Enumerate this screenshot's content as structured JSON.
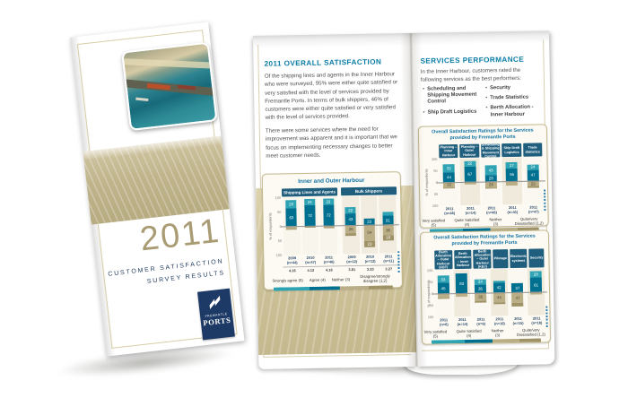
{
  "cover": {
    "year": "2011",
    "title_line1": "CUSTOMER SATISFACTION",
    "title_line2": "SURVEY RESULTS",
    "logo_name_top": "FREMANTLE",
    "logo_name_bottom": "PORTS"
  },
  "left_page": {
    "heading": "2011 OVERALL SATISFACTION",
    "p1": "Of the shipping lines and agents in the Inner Harbour who were surveyed, 95% were either quite satisfied or very satisfied with the level of services provided by Fremantle Ports. In terms of bulk shippers, 46% of customers were either quite satisfied or very satisfied with the level of services provided.",
    "p2": "There were some services where the need for improvement was apparent and it is important that we focus on implementing necessary changes to better meet customer needs."
  },
  "right_page": {
    "heading": "SERVICES PERFORMANCE",
    "intro": "In the Inner Harbour, customers rated the following services as the best performers:",
    "bullet_char": "•",
    "bullets": [
      "Scheduling and Shipping Movement Control",
      "Ship Draft Logistics",
      "Security",
      "Trade Statistics",
      "Berth Allocation - Inner Harbour"
    ]
  },
  "colors": {
    "very_satisfied": "#2da3b4",
    "quite_satisfied": "#007091",
    "neither": "#b9ae85",
    "dissatisfied": "#9e9266",
    "header_navy": "#205e7d",
    "heading_teal": "#0b7ca6",
    "panel_border": "#c6b98e",
    "cover_gold": "#a99b73",
    "logo_navy": "#1d3a66"
  },
  "chart_data": [
    {
      "type": "bar",
      "subtype": "diverging-stacked-bar",
      "title": "Inner and Outer Harbour",
      "ylabel": "% of respondents",
      "yticks": [
        "100",
        "50",
        "0",
        "50",
        "100"
      ],
      "legend": [
        "Strongly agree (5)",
        "Agree (4)",
        "Neither (3)",
        "Disagree/strongly disagree (1,2)"
      ],
      "groups": [
        {
          "label": "Shipping Lines and Agents",
          "span": 3
        },
        {
          "label": "Bulk Shippers",
          "span": 3
        }
      ],
      "columns": [
        {
          "x": "2009 (n=44)",
          "mean": "4.16",
          "very": 28,
          "quite": 63,
          "neither": 8,
          "dis": 1
        },
        {
          "x": "2010 (n=47)",
          "mean": "4.12",
          "very": 24,
          "quite": 72,
          "neither": 3,
          "dis": 1
        },
        {
          "x": "2011 (n=46)",
          "mean": "4.16",
          "very": 23,
          "quite": 72,
          "neither": 4,
          "dis": 1
        },
        {
          "x": "2009 (n=12)",
          "mean": "3.81",
          "very": 22,
          "quite": 43,
          "neither": 26,
          "dis": 9
        },
        {
          "x": "2010 (n=12)",
          "mean": "3.23",
          "very": 0,
          "quite": 23,
          "neither": 54,
          "dis": 23
        },
        {
          "x": "2011 (n=11)",
          "mean": "3.27",
          "very": 15,
          "quite": 31,
          "neither": 36,
          "dis": 18
        }
      ]
    },
    {
      "type": "bar",
      "subtype": "diverging-stacked-bar",
      "title": "Overall Satisfaction Ratings for the Services provided by Fremantle Ports",
      "ylabel": "% of respondents",
      "yticks": [
        "100",
        "50",
        "0",
        "50",
        "100"
      ],
      "legend": [
        "Very satisfied (5)",
        "Quite Satisfied (4)",
        "Neither (3)",
        "Quite/very Dissatisfied (1,2)"
      ],
      "columns": [
        {
          "header": "Planning – Inner Harbour",
          "x": "2011 (n=46)",
          "very": 32,
          "quite": 44,
          "neither": 22,
          "dis": 2
        },
        {
          "header": "Planning – Outer Harbour",
          "x": "2011 (n=14)",
          "very": 22,
          "quite": 67,
          "neither": 11,
          "dis": 0
        },
        {
          "header": "Scheduling & Shipping Movement Control",
          "x": "2011 (n=46)",
          "very": 43,
          "quite": 28,
          "neither": 26,
          "dis": 3
        },
        {
          "header": "Ship Draft Logistics",
          "x": "2011 (n=41)",
          "very": 27,
          "quite": 55,
          "neither": 18,
          "dis": 0
        },
        {
          "header": "Trade Statistics",
          "x": "2011 (n=47)",
          "very": 24,
          "quite": 47,
          "neither": 23,
          "dis": 6
        }
      ]
    },
    {
      "type": "bar",
      "subtype": "diverging-stacked-bar",
      "title": "Overall Satisfaction Ratings for the Services provided by Fremantle Ports",
      "ylabel": "% of respondents",
      "yticks": [
        "100",
        "50",
        "0",
        "50",
        "100"
      ],
      "legend": [
        "Very satisfied (5)",
        "Quite Satisfied (4)",
        "Neither (3)",
        "Quite/very Dissatisfied (1,2)"
      ],
      "columns": [
        {
          "header": "Berth Allocation – Outer Harbour (KBT)",
          "x": "2011 (n=6)",
          "very": 33,
          "quite": 45,
          "neither": 18,
          "dis": 4
        },
        {
          "header": "Berth Allocation – Inner Harbour",
          "x": "2011 (n=14)",
          "very": 0,
          "quite": 83,
          "neither": 17,
          "dis": 0
        },
        {
          "header": "Berth Allocation – Outer Harbour (KBJ)",
          "x": "2011 (n=6)",
          "very": 24,
          "quite": 35,
          "neither": 35,
          "dis": 6
        },
        {
          "header": "Pilotage",
          "x": "2011 (n=16)",
          "very": 8,
          "quite": 42,
          "neither": 44,
          "dis": 6
        },
        {
          "header": "Electronic systems",
          "x": "2011 (n=15)",
          "very": 0,
          "quite": 37,
          "neither": 47,
          "dis": 16
        },
        {
          "header": "Security",
          "x": "2011 (n=18)",
          "very": 28,
          "quite": 61,
          "neither": 11,
          "dis": 0
        }
      ]
    }
  ]
}
